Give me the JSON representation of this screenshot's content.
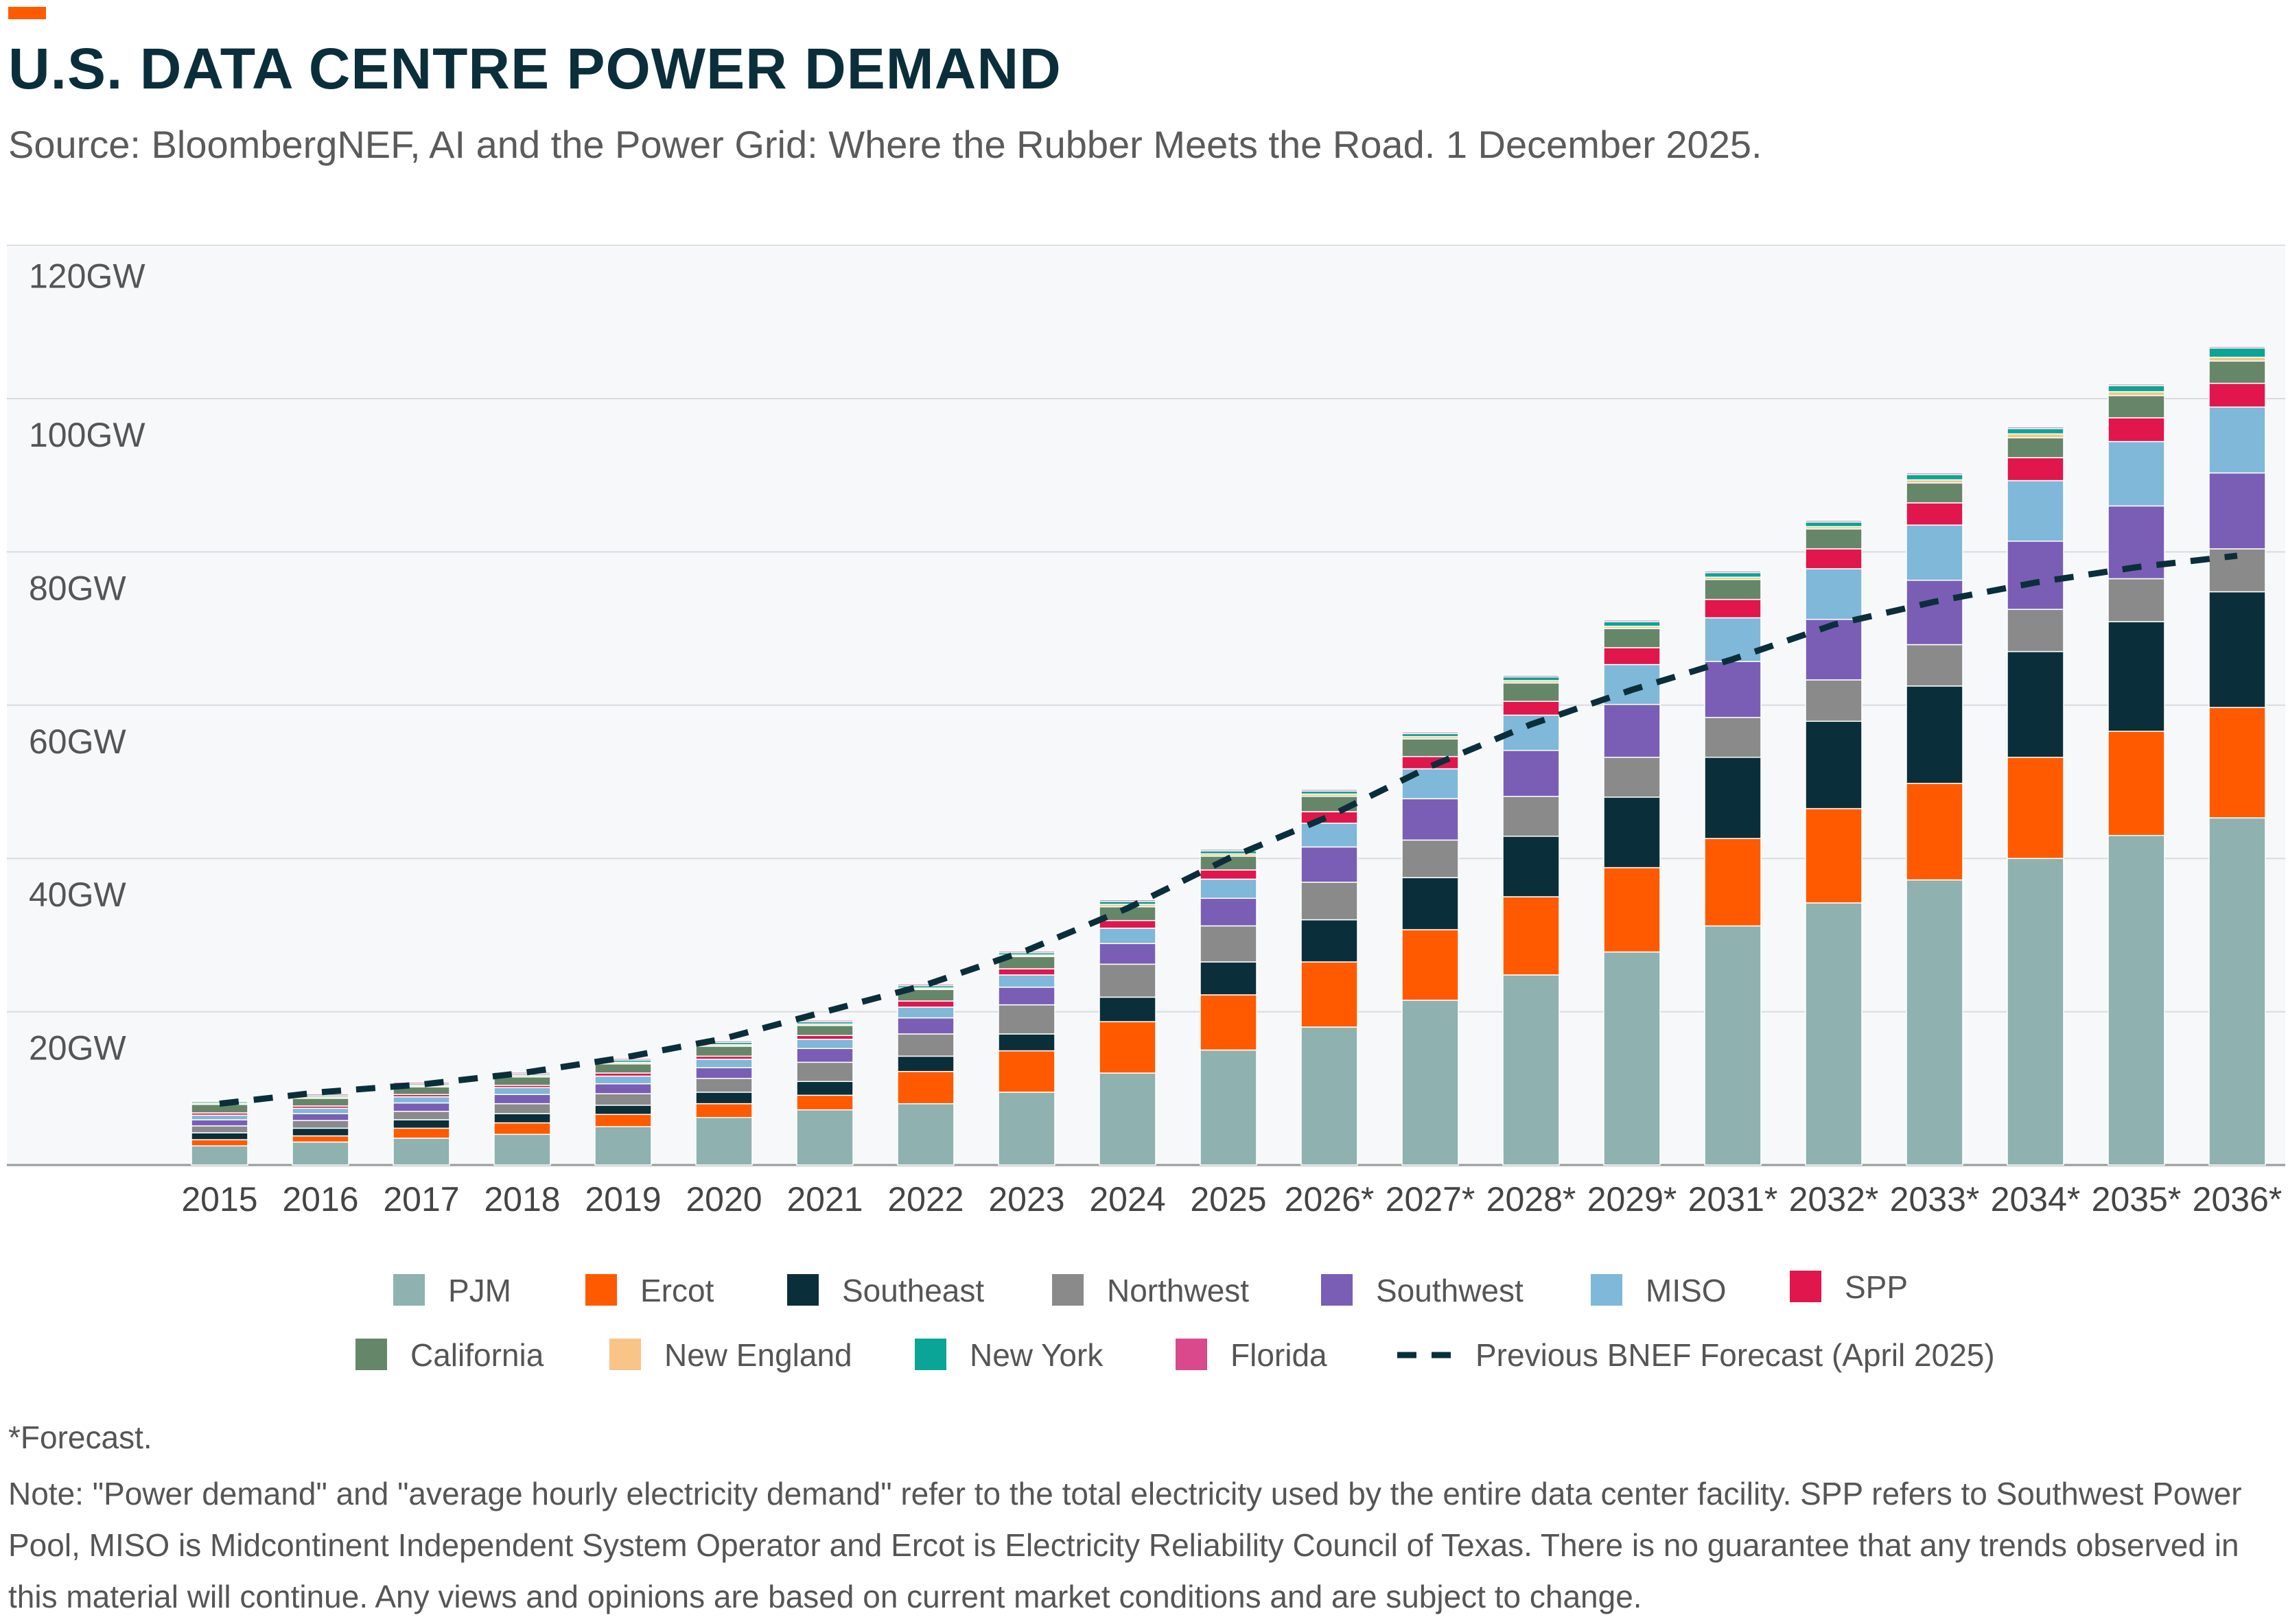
{
  "header": {
    "title": "U.S. DATA CENTRE POWER DEMAND",
    "source": "Source: BloombergNEF, AI and the Power Grid: Where the Rubber Meets the Road. 1 December 2025."
  },
  "colors": {
    "accent": "#ff5a00",
    "title": "#0b2f3a",
    "plot_background": "#f7f8fa",
    "gridline": "#d9dbde"
  },
  "chart_data": {
    "type": "bar",
    "stacked": true,
    "ylim": [
      0,
      120
    ],
    "y_ticks": [
      "20GW",
      "40GW",
      "60GW",
      "80GW",
      "100GW",
      "120GW"
    ],
    "y_tick_values": [
      20,
      40,
      60,
      80,
      100,
      120
    ],
    "grid": true,
    "legend_position": "bottom",
    "categories": [
      "2015",
      "2016",
      "2017",
      "2018",
      "2019",
      "2020",
      "2021",
      "2022",
      "2023",
      "2024",
      "2025",
      "2026*",
      "2027*",
      "2028*",
      "2029*",
      "2031*",
      "2032*",
      "2033*",
      "2034*",
      "2035*",
      "2036*"
    ],
    "series": [
      {
        "name": "PJM",
        "color": "#8fb1b0",
        "values": [
          2.5,
          3,
          3.5,
          4,
          5,
          6.2,
          7.2,
          8,
          9.5,
          12,
          15,
          18,
          21.5,
          24.8,
          27.8,
          31.2,
          34.2,
          37.2,
          40,
          43,
          45.3
        ]
      },
      {
        "name": "Ercot",
        "color": "#ff5a00",
        "values": [
          0.8,
          0.8,
          1.3,
          1.5,
          1.6,
          1.8,
          1.9,
          4.2,
          5.4,
          6.7,
          7.2,
          8.5,
          9.2,
          10.2,
          11,
          11.4,
          12.3,
          12.6,
          13.2,
          13.6,
          14.4
        ]
      },
      {
        "name": "Southeast",
        "color": "#0b2f3a",
        "values": [
          0.9,
          1,
          1.1,
          1.2,
          1.2,
          1.5,
          1.8,
          2,
          2.2,
          3.2,
          4.3,
          5.5,
          6.8,
          7.9,
          9.2,
          10.6,
          11.4,
          12.7,
          13.8,
          14.3,
          15.1
        ]
      },
      {
        "name": "Northwest",
        "color": "#8a8a8a",
        "values": [
          0.9,
          1,
          1.1,
          1.3,
          1.5,
          1.8,
          2.5,
          2.9,
          3.8,
          4.3,
          4.7,
          4.9,
          4.9,
          5.2,
          5.2,
          5.2,
          5.4,
          5.4,
          5.5,
          5.6,
          5.6
        ]
      },
      {
        "name": "Southwest",
        "color": "#7a5eb5",
        "values": [
          0.8,
          0.9,
          1.1,
          1.2,
          1.3,
          1.4,
          1.8,
          2.1,
          2.3,
          2.7,
          3.6,
          4.6,
          5.4,
          6,
          6.9,
          7.3,
          7.9,
          8.4,
          8.9,
          9.5,
          9.9
        ]
      },
      {
        "name": "MISO",
        "color": "#7fb8d8",
        "values": [
          0.6,
          0.7,
          0.8,
          0.9,
          1,
          1.1,
          1.2,
          1.4,
          1.6,
          2,
          2.5,
          3.1,
          3.9,
          4.6,
          5.2,
          5.7,
          6.6,
          7.2,
          7.9,
          8.4,
          8.6
        ]
      },
      {
        "name": "SPP",
        "color": "#e0164d",
        "values": [
          0.3,
          0.3,
          0.3,
          0.3,
          0.4,
          0.4,
          0.5,
          0.8,
          0.8,
          1,
          1.2,
          1.5,
          1.6,
          1.8,
          2.2,
          2.4,
          2.6,
          2.9,
          3,
          3.1,
          3.1
        ]
      },
      {
        "name": "California",
        "color": "#66866a",
        "values": [
          1.1,
          1,
          1,
          1.1,
          1.2,
          1.3,
          1.3,
          1.5,
          1.6,
          1.8,
          1.8,
          2,
          2.3,
          2.4,
          2.5,
          2.6,
          2.6,
          2.6,
          2.6,
          2.9,
          2.9
        ]
      },
      {
        "name": "New England",
        "color": "#f8c488",
        "values": [
          0.2,
          0.2,
          0.2,
          0.2,
          0.2,
          0.2,
          0.2,
          0.2,
          0.2,
          0.3,
          0.3,
          0.3,
          0.3,
          0.3,
          0.3,
          0.3,
          0.3,
          0.4,
          0.5,
          0.5,
          0.5
        ]
      },
      {
        "name": "New York",
        "color": "#0aa596",
        "values": [
          0.2,
          0.2,
          0.2,
          0.2,
          0.3,
          0.3,
          0.3,
          0.3,
          0.3,
          0.4,
          0.4,
          0.4,
          0.4,
          0.5,
          0.6,
          0.6,
          0.6,
          0.7,
          0.7,
          0.8,
          1.2
        ]
      },
      {
        "name": "Florida",
        "color": "#d9498b",
        "values": [
          0.1,
          0.2,
          0.2,
          0.2,
          0.2,
          0.2,
          0.2,
          0.2,
          0.2,
          0.2,
          0.2,
          0.2,
          0.2,
          0.2,
          0.2,
          0.2,
          0.2,
          0.2,
          0.2,
          0.2,
          0.2
        ]
      }
    ],
    "forecast_line": {
      "name": "Previous BNEF Forecast (April 2025)",
      "color": "#0b2f3a",
      "values": [
        8,
        9.5,
        10.5,
        12,
        14,
        16.5,
        20,
        23.5,
        28,
        33.5,
        40,
        45.5,
        52,
        57.5,
        62,
        66,
        70.5,
        73.5,
        76,
        78,
        79.5
      ]
    }
  },
  "footnote": "*Forecast.",
  "note": "Note: \"Power demand\" and \"average hourly electricity demand\" refer to the total electricity used by the entire data center facility. SPP refers to Southwest Power Pool, MISO is Midcontinent Independent System Operator and Ercot is Electricity Reliability Council of Texas. There is no guarantee that any trends observed in this material will continue. Any views and opinions are based on current market conditions and are subject to change."
}
